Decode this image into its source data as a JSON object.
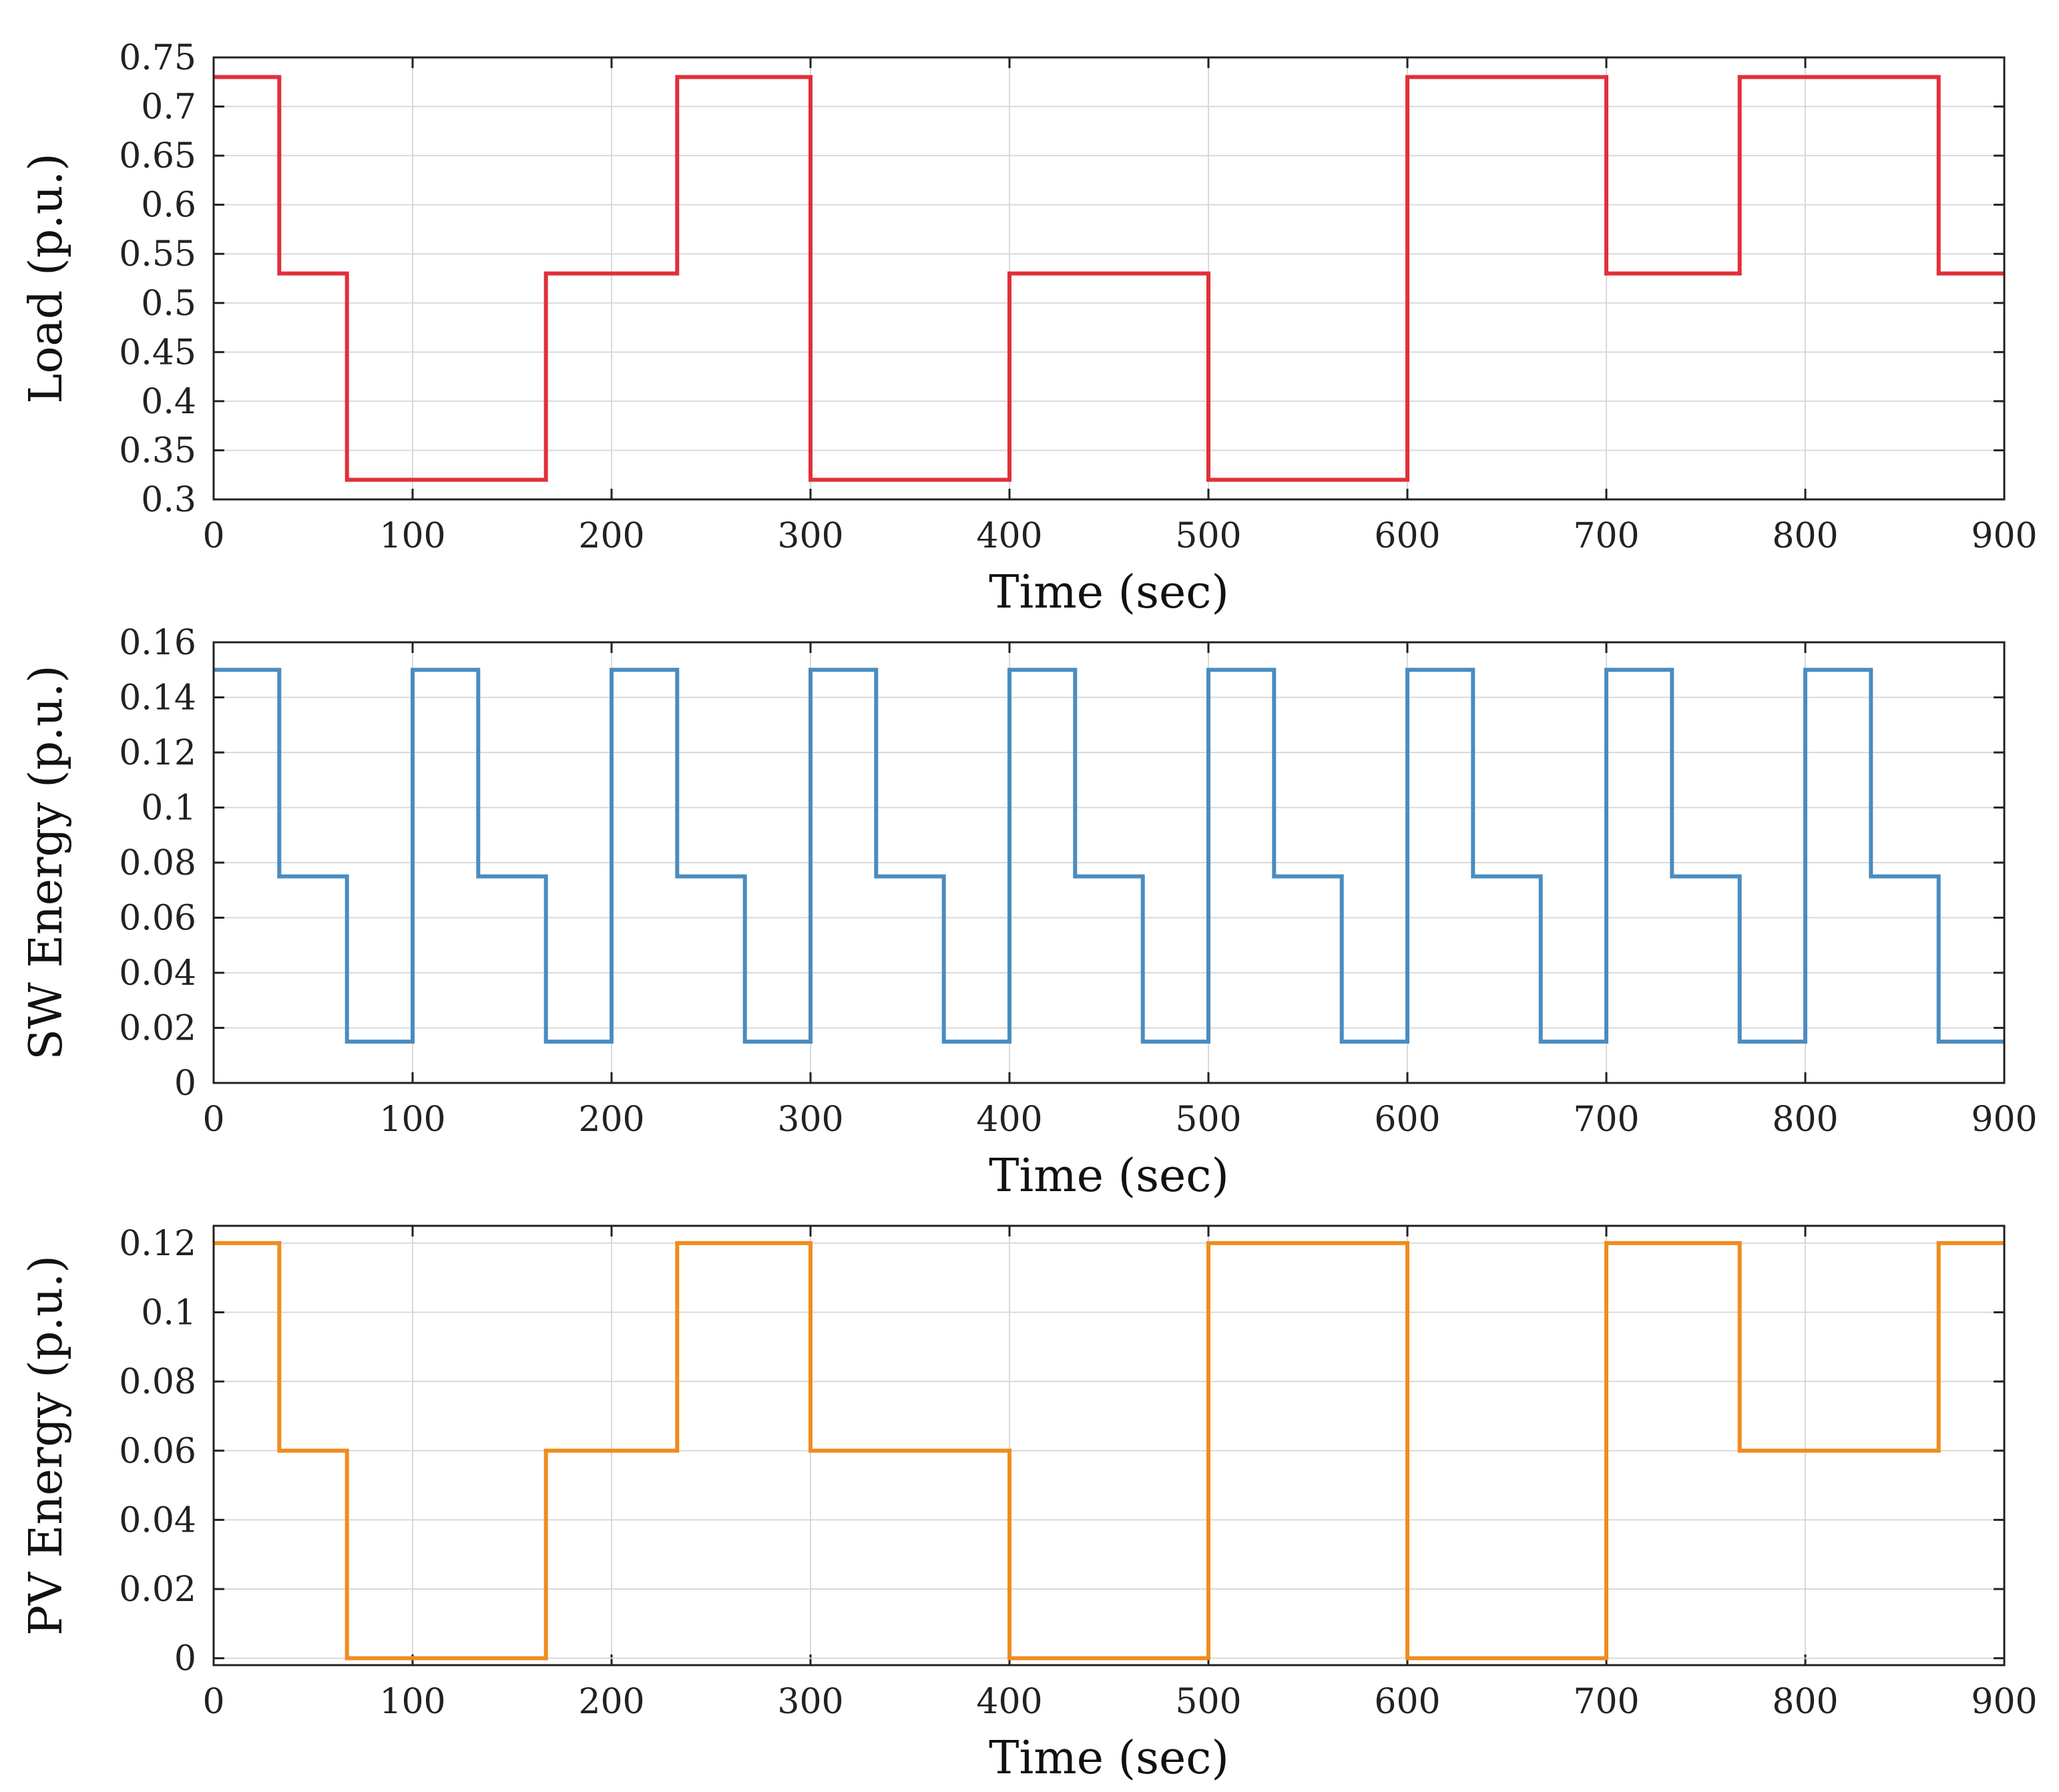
{
  "chart_data": [
    {
      "type": "line",
      "name": "load",
      "xlabel": "Time (sec)",
      "ylabel": "Load (p.u.)",
      "xlim": [
        0,
        900
      ],
      "ylim": [
        0.3,
        0.75
      ],
      "grid": true,
      "color": "#e0303a",
      "x_ticks": [
        "0",
        "100",
        "200",
        "300",
        "400",
        "500",
        "600",
        "700",
        "800",
        "900"
      ],
      "y_ticks": [
        "0.3",
        "0.35",
        "0.4",
        "0.45",
        "0.5",
        "0.55",
        "0.6",
        "0.65",
        "0.7",
        "0.75"
      ],
      "series": [
        {
          "name": "Load",
          "x": [
            0,
            33,
            33,
            67,
            67,
            167,
            167,
            233,
            233,
            300,
            300,
            400,
            400,
            500,
            500,
            600,
            600,
            700,
            700,
            767,
            767,
            867,
            867,
            900
          ],
          "y": [
            0.73,
            0.73,
            0.53,
            0.53,
            0.32,
            0.32,
            0.53,
            0.53,
            0.73,
            0.73,
            0.32,
            0.32,
            0.53,
            0.53,
            0.32,
            0.32,
            0.73,
            0.73,
            0.53,
            0.53,
            0.73,
            0.73,
            0.53,
            0.53
          ]
        }
      ]
    },
    {
      "type": "line",
      "name": "sw",
      "xlabel": "Time (sec)",
      "ylabel": "SW Energy (p.u.)",
      "xlim": [
        0,
        900
      ],
      "ylim": [
        0,
        0.16
      ],
      "grid": true,
      "color": "#4a8cc0",
      "x_ticks": [
        "0",
        "100",
        "200",
        "300",
        "400",
        "500",
        "600",
        "700",
        "800",
        "900"
      ],
      "y_ticks": [
        "0",
        "0.02",
        "0.04",
        "0.06",
        "0.08",
        "0.1",
        "0.12",
        "0.14",
        "0.16"
      ],
      "series": [
        {
          "name": "SW Energy",
          "x": [
            0,
            33,
            33,
            67,
            67,
            100,
            100,
            133,
            133,
            167,
            167,
            200,
            200,
            233,
            233,
            267,
            267,
            300,
            300,
            333,
            333,
            367,
            367,
            400,
            400,
            433,
            433,
            467,
            467,
            500,
            500,
            533,
            533,
            567,
            567,
            600,
            600,
            633,
            633,
            667,
            667,
            700,
            700,
            733,
            733,
            767,
            767,
            800,
            800,
            833,
            833,
            867,
            867,
            900
          ],
          "y": [
            0.15,
            0.15,
            0.075,
            0.075,
            0.015,
            0.015,
            0.15,
            0.15,
            0.075,
            0.075,
            0.015,
            0.015,
            0.15,
            0.15,
            0.075,
            0.075,
            0.015,
            0.015,
            0.15,
            0.15,
            0.075,
            0.075,
            0.015,
            0.015,
            0.15,
            0.15,
            0.075,
            0.075,
            0.015,
            0.015,
            0.15,
            0.15,
            0.075,
            0.075,
            0.015,
            0.015,
            0.15,
            0.15,
            0.075,
            0.075,
            0.015,
            0.015,
            0.15,
            0.15,
            0.075,
            0.075,
            0.015,
            0.015,
            0.15,
            0.15,
            0.075,
            0.075,
            0.015,
            0.015
          ]
        }
      ]
    },
    {
      "type": "line",
      "name": "pv",
      "xlabel": "Time (sec)",
      "ylabel": "PV Energy (p.u.)",
      "xlim": [
        0,
        900
      ],
      "ylim": [
        -0.002,
        0.125
      ],
      "grid": true,
      "color": "#f08c1e",
      "x_ticks": [
        "0",
        "100",
        "200",
        "300",
        "400",
        "500",
        "600",
        "700",
        "800",
        "900"
      ],
      "y_ticks": [
        "0",
        "0.02",
        "0.04",
        "0.06",
        "0.08",
        "0.1",
        "0.12"
      ],
      "series": [
        {
          "name": "PV Energy",
          "x": [
            0,
            33,
            33,
            67,
            67,
            167,
            167,
            233,
            233,
            300,
            300,
            400,
            400,
            500,
            500,
            600,
            600,
            700,
            700,
            767,
            767,
            867,
            867,
            900
          ],
          "y": [
            0.12,
            0.12,
            0.06,
            0.06,
            0,
            0,
            0.06,
            0.06,
            0.12,
            0.12,
            0.06,
            0.06,
            0,
            0,
            0.12,
            0.12,
            0,
            0,
            0.12,
            0.12,
            0.06,
            0.06,
            0.12,
            0.12
          ]
        }
      ]
    }
  ]
}
